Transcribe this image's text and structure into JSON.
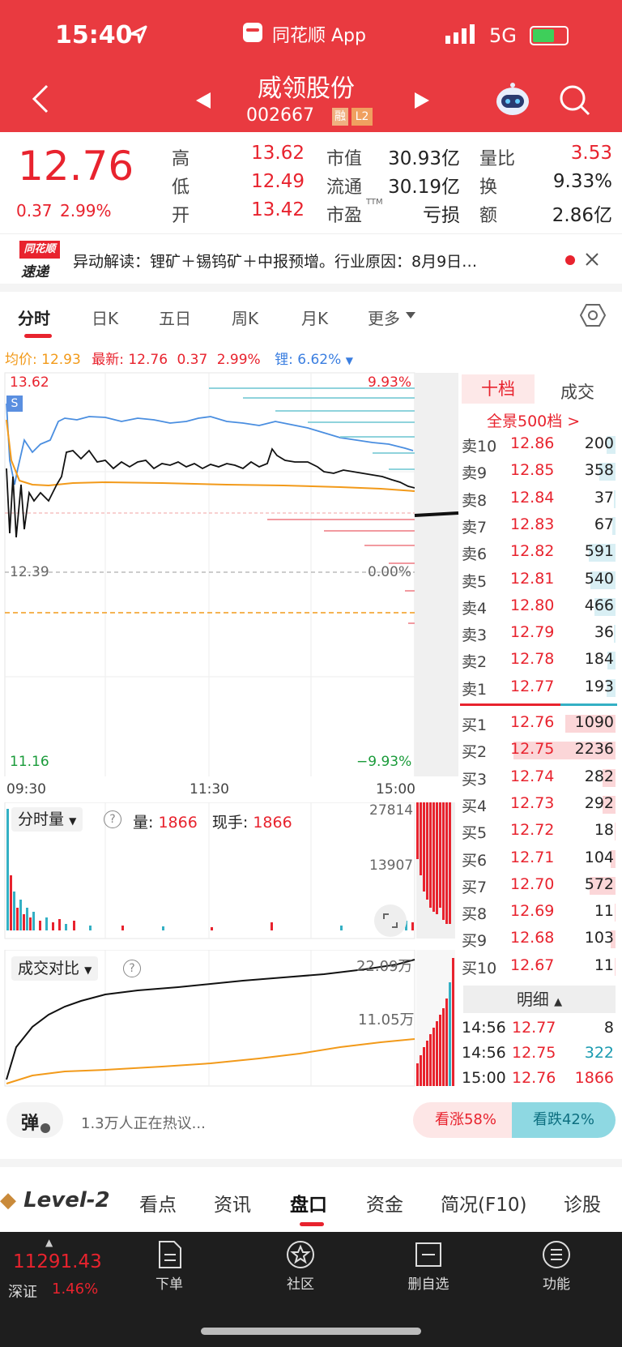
{
  "status_bar": {
    "time": "15:40",
    "app_name": "同花顺 App",
    "network": "5G"
  },
  "header": {
    "title": "威领股份",
    "code": "002667",
    "badge_rong": "融",
    "badge_l2": "L2"
  },
  "quote": {
    "price": "12.76",
    "change": "0.37",
    "change_pct": "2.99%",
    "rows": [
      {
        "l1": "高",
        "v1": "13.62",
        "l2": "市值",
        "v2": "30.93亿",
        "l3": "量比",
        "v3": "3.53"
      },
      {
        "l1": "低",
        "v1": "12.49",
        "l2": "流通",
        "v2": "30.19亿",
        "l3": "换",
        "v3": "9.33%"
      },
      {
        "l1": "开",
        "v1": "13.42",
        "l2": "市盈",
        "sup2": "TTM",
        "v2": "亏损",
        "l3": "额",
        "v3": "2.86亿"
      }
    ]
  },
  "news": {
    "logo_top": "同花顺",
    "logo_bottom": "速递",
    "text": "异动解读：锂矿＋锡钨矿＋中报预增。行业原因：8月9日…"
  },
  "chart_tabs": [
    "分时",
    "日K",
    "五日",
    "周K",
    "月K",
    "更多"
  ],
  "chart_info": {
    "avg_label": "均价:",
    "avg": "12.93",
    "latest_label": "最新:",
    "latest": "12.76",
    "chg": "0.37",
    "chg_pct": "2.99%",
    "li_label": "锂:",
    "li": "6.62%"
  },
  "intraday": {
    "top_price": "13.62",
    "top_pct": "9.93%",
    "mid_price": "12.39",
    "mid_pct": "0.00%",
    "bottom_price": "11.16",
    "bottom_pct": "−9.93%",
    "marker": "S",
    "times": [
      "09:30",
      "11:30",
      "15:00"
    ]
  },
  "volume": {
    "selector": "分时量",
    "vol_label": "量:",
    "vol": "1866",
    "hand_label": "现手:",
    "hand": "1866",
    "max": "27814",
    "mid": "13907"
  },
  "compare": {
    "selector": "成交对比",
    "top": "22.09万",
    "mid": "11.05万"
  },
  "book_tabs": {
    "ten": "十档",
    "deals": "成交",
    "full": "全景500档 >"
  },
  "asks": [
    {
      "label": "卖10",
      "price": "12.86",
      "vol": "200"
    },
    {
      "label": "卖9",
      "price": "12.85",
      "vol": "358"
    },
    {
      "label": "卖8",
      "price": "12.84",
      "vol": "37"
    },
    {
      "label": "卖7",
      "price": "12.83",
      "vol": "67"
    },
    {
      "label": "卖6",
      "price": "12.82",
      "vol": "591"
    },
    {
      "label": "卖5",
      "price": "12.81",
      "vol": "540"
    },
    {
      "label": "卖4",
      "price": "12.80",
      "vol": "466"
    },
    {
      "label": "卖3",
      "price": "12.79",
      "vol": "36"
    },
    {
      "label": "卖2",
      "price": "12.78",
      "vol": "184"
    },
    {
      "label": "卖1",
      "price": "12.77",
      "vol": "193"
    }
  ],
  "bids": [
    {
      "label": "买1",
      "price": "12.76",
      "vol": "1090"
    },
    {
      "label": "买2",
      "price": "12.75",
      "vol": "2236"
    },
    {
      "label": "买3",
      "price": "12.74",
      "vol": "282"
    },
    {
      "label": "买4",
      "price": "12.73",
      "vol": "292"
    },
    {
      "label": "买5",
      "price": "12.72",
      "vol": "18"
    },
    {
      "label": "买6",
      "price": "12.71",
      "vol": "104"
    },
    {
      "label": "买7",
      "price": "12.70",
      "vol": "572"
    },
    {
      "label": "买8",
      "price": "12.69",
      "vol": "11"
    },
    {
      "label": "买9",
      "price": "12.68",
      "vol": "103"
    },
    {
      "label": "买10",
      "price": "12.67",
      "vol": "11"
    }
  ],
  "detail": {
    "header": "明细",
    "rows": [
      {
        "time": "14:56",
        "price": "12.77",
        "vol": "8"
      },
      {
        "time": "14:56",
        "price": "12.75",
        "vol": "322"
      },
      {
        "time": "15:00",
        "price": "12.76",
        "vol": "1866"
      }
    ]
  },
  "danmu": {
    "icon": "弹",
    "text": "1.3万人正在热议...",
    "up": "看涨58%",
    "down": "看跌42%"
  },
  "bottom_tabs": [
    "Level-2",
    "看点",
    "资讯",
    "盘口",
    "资金",
    "简况(F10)",
    "诊股"
  ],
  "footer": {
    "index_value": "11291.43",
    "index_name": "深证",
    "index_pct": "1.46%",
    "buttons": [
      "下单",
      "社区",
      "删自选",
      "功能"
    ]
  }
}
